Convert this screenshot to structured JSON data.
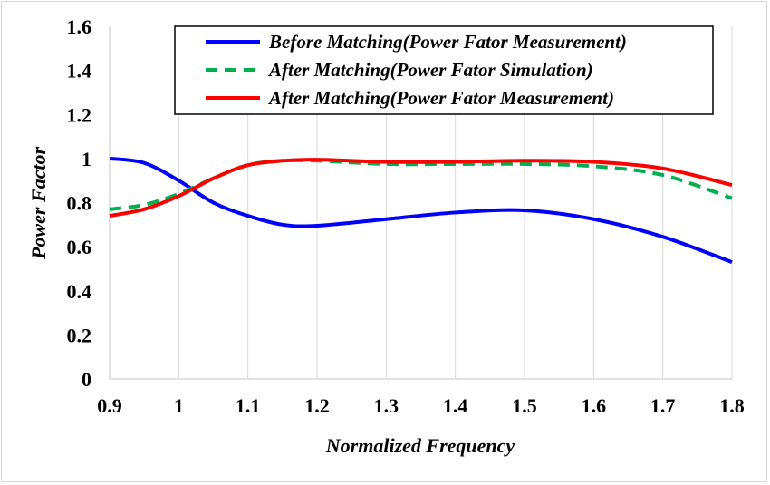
{
  "chart_data": {
    "type": "line",
    "xlabel": "Normalized Frequency",
    "ylabel": "Power Factor",
    "xlim": [
      0.9,
      1.8
    ],
    "ylim": [
      0,
      1.6
    ],
    "x_ticks": [
      "0.9",
      "1",
      "1.1",
      "1.2",
      "1.3",
      "1.4",
      "1.5",
      "1.6",
      "1.7",
      "1.8"
    ],
    "y_ticks": [
      "0",
      "0.2",
      "0.4",
      "0.6",
      "0.8",
      "1",
      "1.2",
      "1.4",
      "1.6"
    ],
    "grid": "vertical",
    "legend_position": "top-right",
    "series": [
      {
        "name": "Before Matching(Power Fator Measurement)",
        "color": "#0000ff",
        "style": "solid",
        "x": [
          0.9,
          0.95,
          1.0,
          1.05,
          1.1,
          1.15,
          1.2,
          1.3,
          1.4,
          1.5,
          1.6,
          1.7,
          1.8
        ],
        "y": [
          1.0,
          0.98,
          0.9,
          0.8,
          0.74,
          0.7,
          0.695,
          0.725,
          0.755,
          0.765,
          0.725,
          0.645,
          0.53
        ]
      },
      {
        "name": "After Matching(Power Fator Simulation)",
        "color": "#00b050",
        "style": "dashed",
        "x": [
          0.9,
          0.95,
          1.0,
          1.05,
          1.1,
          1.15,
          1.2,
          1.3,
          1.4,
          1.5,
          1.6,
          1.7,
          1.8
        ],
        "y": [
          0.77,
          0.79,
          0.84,
          0.91,
          0.97,
          0.99,
          0.99,
          0.975,
          0.975,
          0.975,
          0.965,
          0.925,
          0.82
        ]
      },
      {
        "name": "After Matching(Power Fator Measurement)",
        "color": "#ff0000",
        "style": "solid",
        "x": [
          0.9,
          0.95,
          1.0,
          1.05,
          1.1,
          1.15,
          1.2,
          1.3,
          1.4,
          1.5,
          1.6,
          1.7,
          1.8
        ],
        "y": [
          0.74,
          0.77,
          0.83,
          0.91,
          0.97,
          0.99,
          0.995,
          0.985,
          0.985,
          0.99,
          0.985,
          0.955,
          0.88
        ]
      }
    ]
  }
}
